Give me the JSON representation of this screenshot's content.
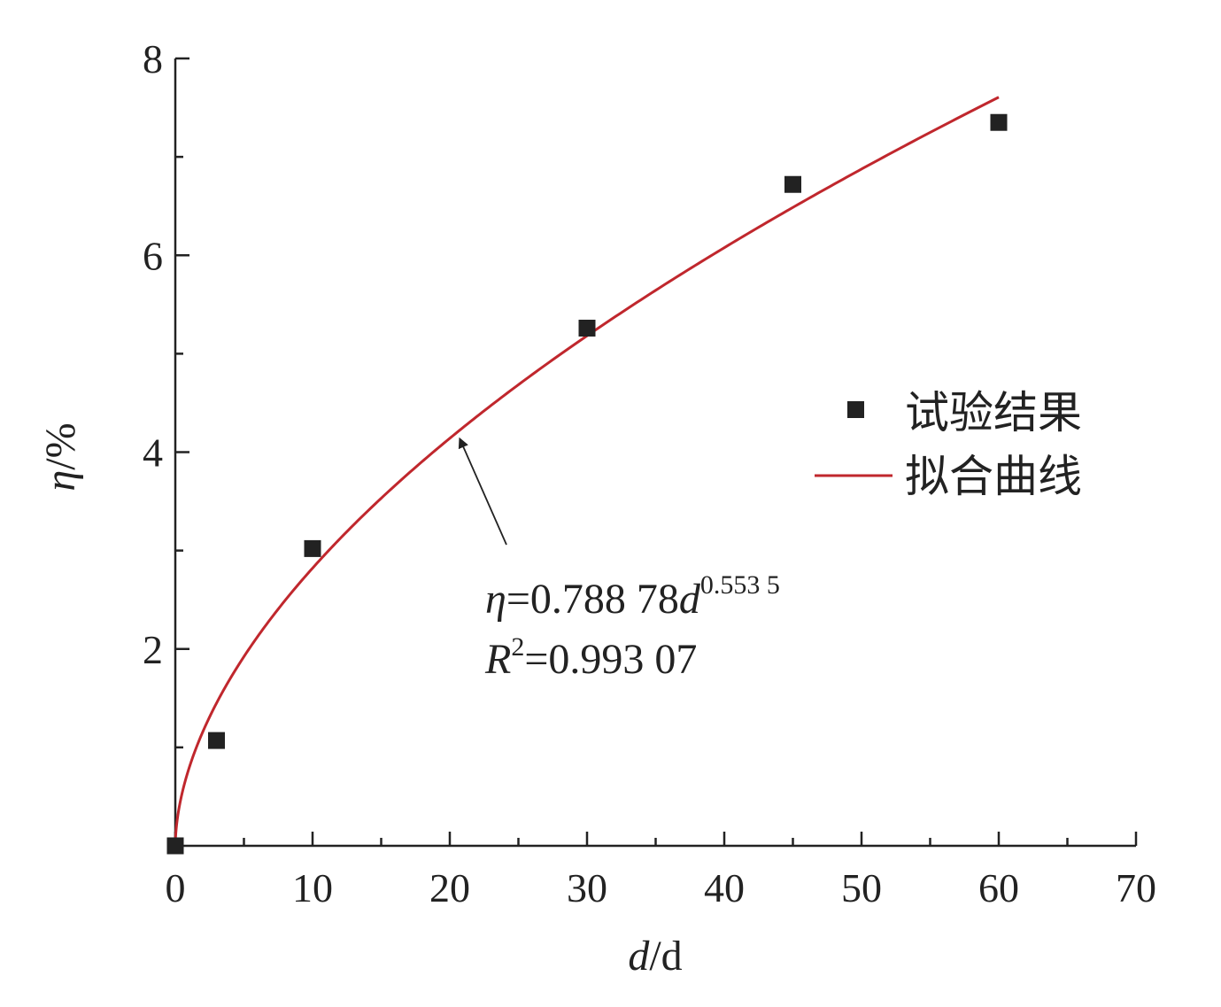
{
  "chart_data": {
    "type": "scatter",
    "xlabel": "d/d",
    "xlabel_italic": "d",
    "xlabel_rest": "/d",
    "ylabel": "η/%",
    "ylabel_italic": "η",
    "ylabel_rest": "/%",
    "xlim": [
      0,
      70
    ],
    "ylim": [
      0,
      8
    ],
    "x_ticks": [
      0,
      10,
      20,
      30,
      40,
      50,
      60,
      70
    ],
    "x_minor_step": 5,
    "y_ticks": [
      2,
      4,
      6,
      8
    ],
    "y_minor_step": 1,
    "grid": false,
    "legend_position": "right",
    "series": [
      {
        "name": "试验结果",
        "kind": "scatter",
        "marker": "square",
        "color": "#222222",
        "x": [
          0,
          3,
          10,
          30,
          45,
          60
        ],
        "y": [
          0,
          1.07,
          3.02,
          5.26,
          6.72,
          7.35
        ]
      },
      {
        "name": "拟合曲线",
        "kind": "line",
        "color": "#c0272d",
        "model": {
          "a": 0.78878,
          "b": 0.5535
        },
        "x_range": [
          0,
          60
        ]
      }
    ],
    "annotations": {
      "eq_italic": "η",
      "eq_main": "=0.788 78",
      "eq_var": "d",
      "eq_exp": "0.553 5",
      "r2_var": "R",
      "r2_sup": "2",
      "r2_value": "=0.993 07",
      "arrow_target_x": 20.5
    }
  }
}
